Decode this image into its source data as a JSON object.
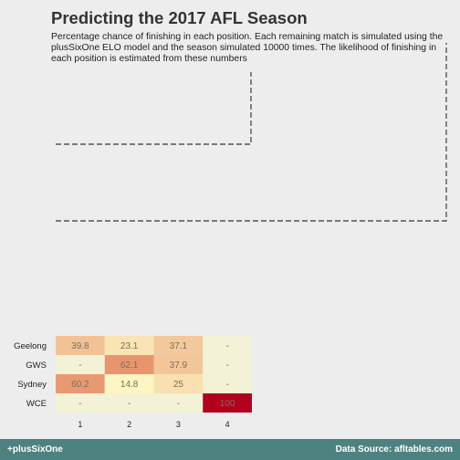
{
  "header": {
    "title": "Predicting the 2017 AFL Season",
    "subtitle": "Percentage chance of finishing in each position. Each remaining match is simulated using the plusSixOne ELO model and the season simulated 10000 times. The likelihood of finishing in each position is estimated from these numbers"
  },
  "footer": {
    "left": "+plusSixOne",
    "right": "Data Source: afltables.com"
  },
  "chart_data": {
    "type": "heatmap",
    "title": "Predicting the 2017 AFL Season",
    "teams": [
      "Geelong",
      "GWS",
      "Sydney",
      "WCE"
    ],
    "positions": [
      "1",
      "2",
      "3",
      "4"
    ],
    "values": [
      [
        39.8,
        23.1,
        37.1,
        null
      ],
      [
        null,
        62.1,
        37.9,
        null
      ],
      [
        60.2,
        14.8,
        25,
        null
      ],
      [
        null,
        null,
        null,
        100
      ]
    ],
    "missing_label": "-",
    "bracket": {
      "semis": [
        {
          "team_rows": [
            0,
            3
          ]
        },
        {
          "team_rows": [
            1,
            2
          ]
        }
      ]
    },
    "colors": {
      "missing": "#f3f1d6",
      "low": "#ffffcc",
      "mid": "#e8956f",
      "high": "#b2001f",
      "text": "#7a6f55"
    }
  }
}
